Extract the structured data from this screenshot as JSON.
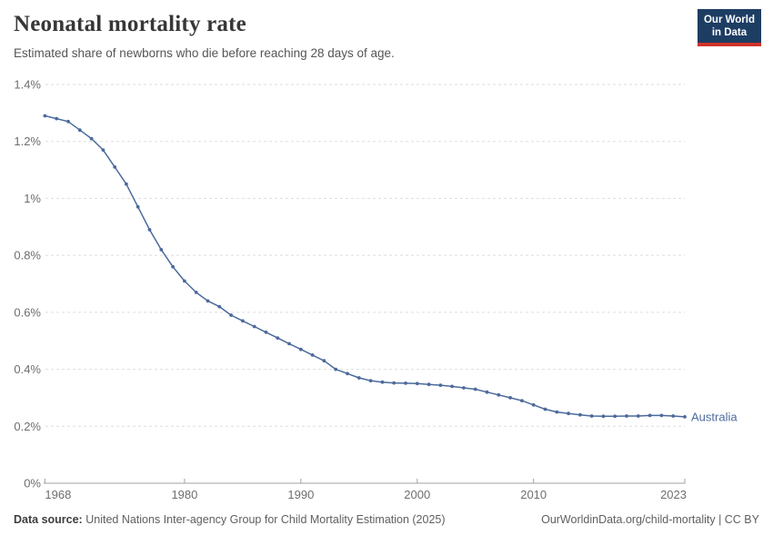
{
  "header": {
    "title": "Neonatal mortality rate",
    "subtitle": "Estimated share of newborns who die before reaching 28 days of age.",
    "logo": {
      "line1": "Our World",
      "line2": "in Data"
    }
  },
  "footer": {
    "source_label": "Data source:",
    "source_text": "United Nations Inter-agency Group for Child Mortality Estimation (2025)",
    "right_text": "OurWorldinData.org/child-mortality | CC BY"
  },
  "colors": {
    "series_blue": "#4c6a9c",
    "grid": "#dedede",
    "axis": "#a0a0a0",
    "tick_label": "#6e6e6e",
    "logo_navy": "#1d3d63",
    "logo_red": "#cf322b"
  },
  "chart_data": {
    "type": "line",
    "title": "Neonatal mortality rate",
    "subtitle": "Estimated share of newborns who die before reaching 28 days of age.",
    "unit": "%",
    "grid": "horizontal-dashed",
    "legend_position": "end-of-line-label",
    "xlim": [
      1968,
      2023
    ],
    "ylim": [
      0,
      1.4
    ],
    "x_ticks": {
      "values": [
        1968,
        1980,
        1990,
        2000,
        2010,
        2023
      ],
      "labels": [
        "1968",
        "1980",
        "1990",
        "2000",
        "2010",
        "2023"
      ]
    },
    "y_ticks": {
      "values": [
        0,
        0.2,
        0.4,
        0.6,
        0.8,
        1.0,
        1.2,
        1.4
      ],
      "labels": [
        "0%",
        "0.2%",
        "0.4%",
        "0.6%",
        "0.8%",
        "1%",
        "1.2%",
        "1.4%"
      ]
    },
    "series": [
      {
        "name": "Australia",
        "color": "#4c6a9c",
        "x": [
          1968,
          1969,
          1970,
          1971,
          1972,
          1973,
          1974,
          1975,
          1976,
          1977,
          1978,
          1979,
          1980,
          1981,
          1982,
          1983,
          1984,
          1985,
          1986,
          1987,
          1988,
          1989,
          1990,
          1991,
          1992,
          1993,
          1994,
          1995,
          1996,
          1997,
          1998,
          1999,
          2000,
          2001,
          2002,
          2003,
          2004,
          2005,
          2006,
          2007,
          2008,
          2009,
          2010,
          2011,
          2012,
          2013,
          2014,
          2015,
          2016,
          2017,
          2018,
          2019,
          2020,
          2021,
          2022,
          2023
        ],
        "values": [
          1.29,
          1.28,
          1.27,
          1.24,
          1.21,
          1.17,
          1.11,
          1.05,
          0.97,
          0.89,
          0.82,
          0.76,
          0.71,
          0.67,
          0.64,
          0.62,
          0.59,
          0.57,
          0.55,
          0.53,
          0.51,
          0.49,
          0.47,
          0.45,
          0.43,
          0.4,
          0.385,
          0.37,
          0.36,
          0.355,
          0.352,
          0.351,
          0.35,
          0.347,
          0.344,
          0.34,
          0.335,
          0.33,
          0.32,
          0.31,
          0.3,
          0.29,
          0.275,
          0.26,
          0.25,
          0.245,
          0.24,
          0.236,
          0.235,
          0.235,
          0.236,
          0.236,
          0.238,
          0.238,
          0.236,
          0.233
        ]
      }
    ]
  }
}
